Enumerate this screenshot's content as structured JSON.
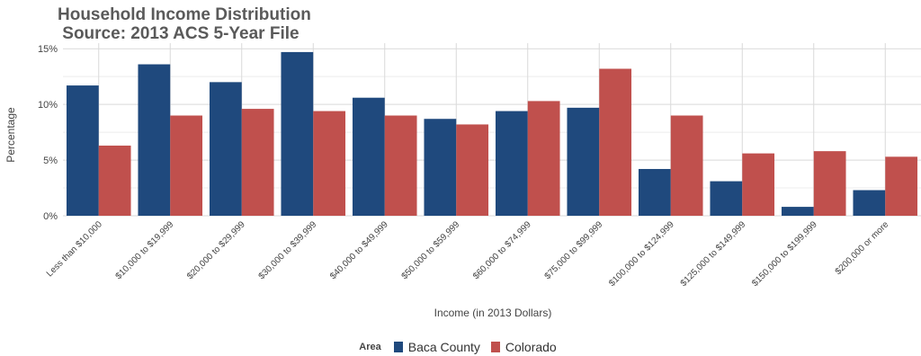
{
  "chart_data": {
    "type": "bar",
    "title": "Household Income Distribution",
    "subtitle": " Source: 2013 ACS 5-Year File",
    "xlabel": "Income (in 2013 Dollars)",
    "ylabel": "Percentage",
    "ylim": [
      0,
      15.5
    ],
    "yticks": [
      0,
      5,
      10,
      15
    ],
    "ytick_labels": [
      "0%",
      "5%",
      "10%",
      "15%"
    ],
    "grid": true,
    "legend_title": "Area",
    "legend_position": "bottom",
    "categories": [
      "Less than $10,000",
      "$10,000 to $19,999",
      "$20,000 to $29,999",
      "$30,000 to $39,999",
      "$40,000 to $49,999",
      "$50,000 to $59,999",
      "$60,000 to $74,999",
      "$75,000 to $99,999",
      "$100,000 to $124,999",
      "$125,000 to $149,999",
      "$150,000 to $199,999",
      "$200,000 or more"
    ],
    "series": [
      {
        "name": "Baca County",
        "color": "#1f497d",
        "values": [
          11.7,
          13.6,
          12.0,
          14.7,
          10.6,
          8.7,
          9.4,
          9.7,
          4.2,
          3.1,
          0.8,
          2.3
        ]
      },
      {
        "name": "Colorado",
        "color": "#c0504d",
        "values": [
          6.3,
          9.0,
          9.6,
          9.4,
          9.0,
          8.2,
          10.3,
          13.2,
          9.0,
          5.6,
          5.8,
          5.3
        ]
      }
    ]
  }
}
